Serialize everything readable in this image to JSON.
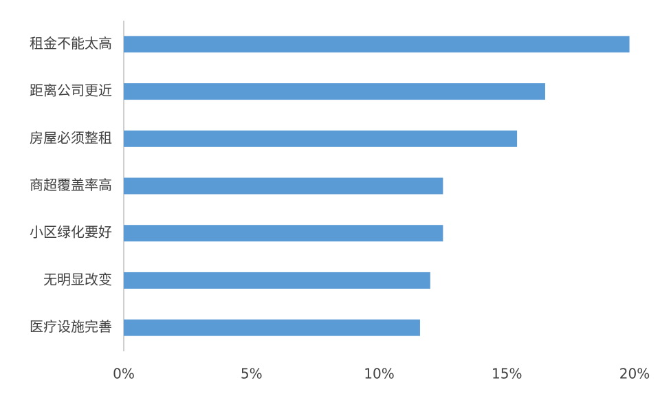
{
  "chart_data": {
    "type": "barh",
    "categories": [
      "租金不能太高",
      "距离公司更近",
      "房屋必须整租",
      "商超覆盖率高",
      "小区绿化要好",
      "无明显改变",
      "医疗设施完善"
    ],
    "values": [
      19.8,
      16.5,
      15.4,
      12.5,
      12.5,
      12.0,
      11.6
    ],
    "color": "#5b9bd5",
    "xlim": [
      0,
      20
    ],
    "xticks": [
      {
        "value": 0,
        "label": "0%"
      },
      {
        "value": 5,
        "label": "5%"
      },
      {
        "value": 10,
        "label": "10%"
      },
      {
        "value": 15,
        "label": "15%"
      },
      {
        "value": 20,
        "label": "20%"
      }
    ],
    "grid": false
  }
}
